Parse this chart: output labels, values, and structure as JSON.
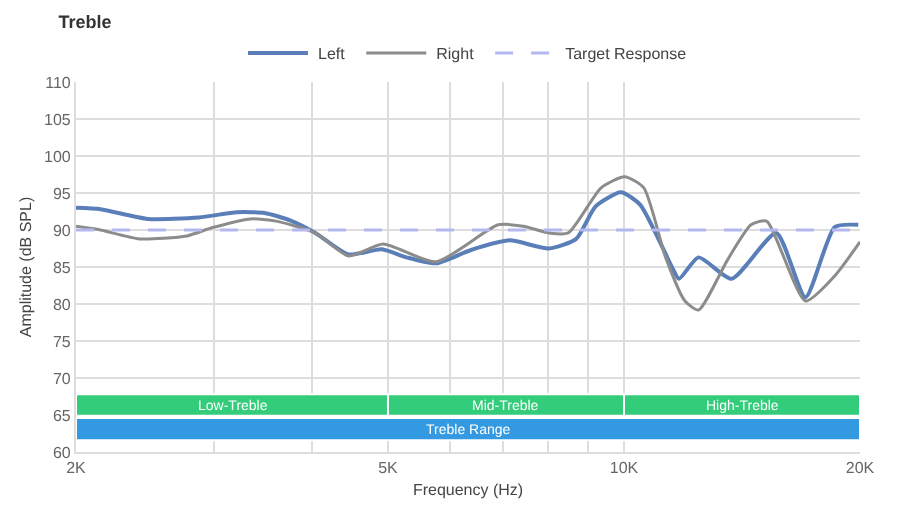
{
  "chart_data": {
    "type": "line",
    "title": "Treble",
    "xlabel": "Frequency (Hz)",
    "ylabel": "Amplitude (dB SPL)",
    "log": "x",
    "xlim": [
      2000,
      20000
    ],
    "xticks": [
      {
        "value": 2000,
        "label": "2K"
      },
      {
        "value": 3000,
        "label": null
      },
      {
        "value": 4000,
        "label": null
      },
      {
        "value": 5000,
        "label": "5K"
      },
      {
        "value": 6000,
        "label": null
      },
      {
        "value": 7000,
        "label": null
      },
      {
        "value": 8000,
        "label": null
      },
      {
        "value": 9000,
        "label": null
      },
      {
        "value": 10000,
        "label": "10K"
      },
      {
        "value": 20000,
        "label": "20K"
      }
    ],
    "ylim": [
      60,
      110
    ],
    "yticks": [
      60,
      65,
      70,
      75,
      80,
      85,
      90,
      95,
      100,
      105,
      110
    ],
    "grid": true,
    "legend": "top",
    "marker": "none",
    "line_style": "solid",
    "series": [
      {
        "name": "Left",
        "color": "#5a7fb8",
        "x": [
          2000,
          2150,
          2470,
          2870,
          3210,
          3480,
          3750,
          4040,
          4450,
          4910,
          5280,
          5760,
          6380,
          7150,
          8020,
          8690,
          9200,
          9910,
          10490,
          11560,
          11750,
          12450,
          13720,
          15640,
          17040,
          18570,
          19900
        ],
        "values": [
          93,
          92.8,
          91.5,
          91.7,
          92.4,
          92.3,
          91.3,
          89.6,
          86.7,
          87.4,
          86.3,
          85.5,
          87.3,
          88.6,
          87.5,
          88.8,
          93.2,
          95.1,
          93.4,
          84.6,
          83.4,
          86.3,
          83.4,
          89.6,
          80.9,
          90.4,
          90.7
        ]
      },
      {
        "name": "Right",
        "color": "#8c8c8c",
        "x": [
          2000,
          2150,
          2410,
          2770,
          2980,
          3340,
          3600,
          4040,
          4450,
          4930,
          5760,
          6910,
          7440,
          8020,
          8490,
          9350,
          10020,
          10600,
          11300,
          11960,
          12450,
          13560,
          14520,
          15200,
          17040,
          18570,
          20000
        ],
        "values": [
          90.5,
          90,
          88.8,
          89.2,
          90.3,
          91.5,
          91.2,
          89.6,
          86.5,
          88.1,
          85.7,
          90.7,
          90.5,
          89.6,
          89.6,
          95.7,
          97.2,
          95.7,
          86.3,
          80.4,
          79.2,
          86,
          90.7,
          91.2,
          80.4,
          83.8,
          88.4
        ]
      },
      {
        "name": "Target Response",
        "color": "#b4b8f0",
        "line_style": "dashed",
        "x": [
          2000,
          20000
        ],
        "values": [
          90,
          90
        ]
      }
    ],
    "bands": [
      {
        "axis": "x",
        "from": 2000,
        "to": 5000,
        "label": "Low-Treble",
        "color": "#33cc7a"
      },
      {
        "axis": "x",
        "from": 5000,
        "to": 10000,
        "label": "Mid-Treble",
        "color": "#33cc7a"
      },
      {
        "axis": "x",
        "from": 10000,
        "to": 20000,
        "label": "High-Treble",
        "color": "#33cc7a"
      },
      {
        "axis": "x",
        "from": 2000,
        "to": 20000,
        "label": "Treble Range",
        "color": "#3399e0"
      }
    ]
  }
}
